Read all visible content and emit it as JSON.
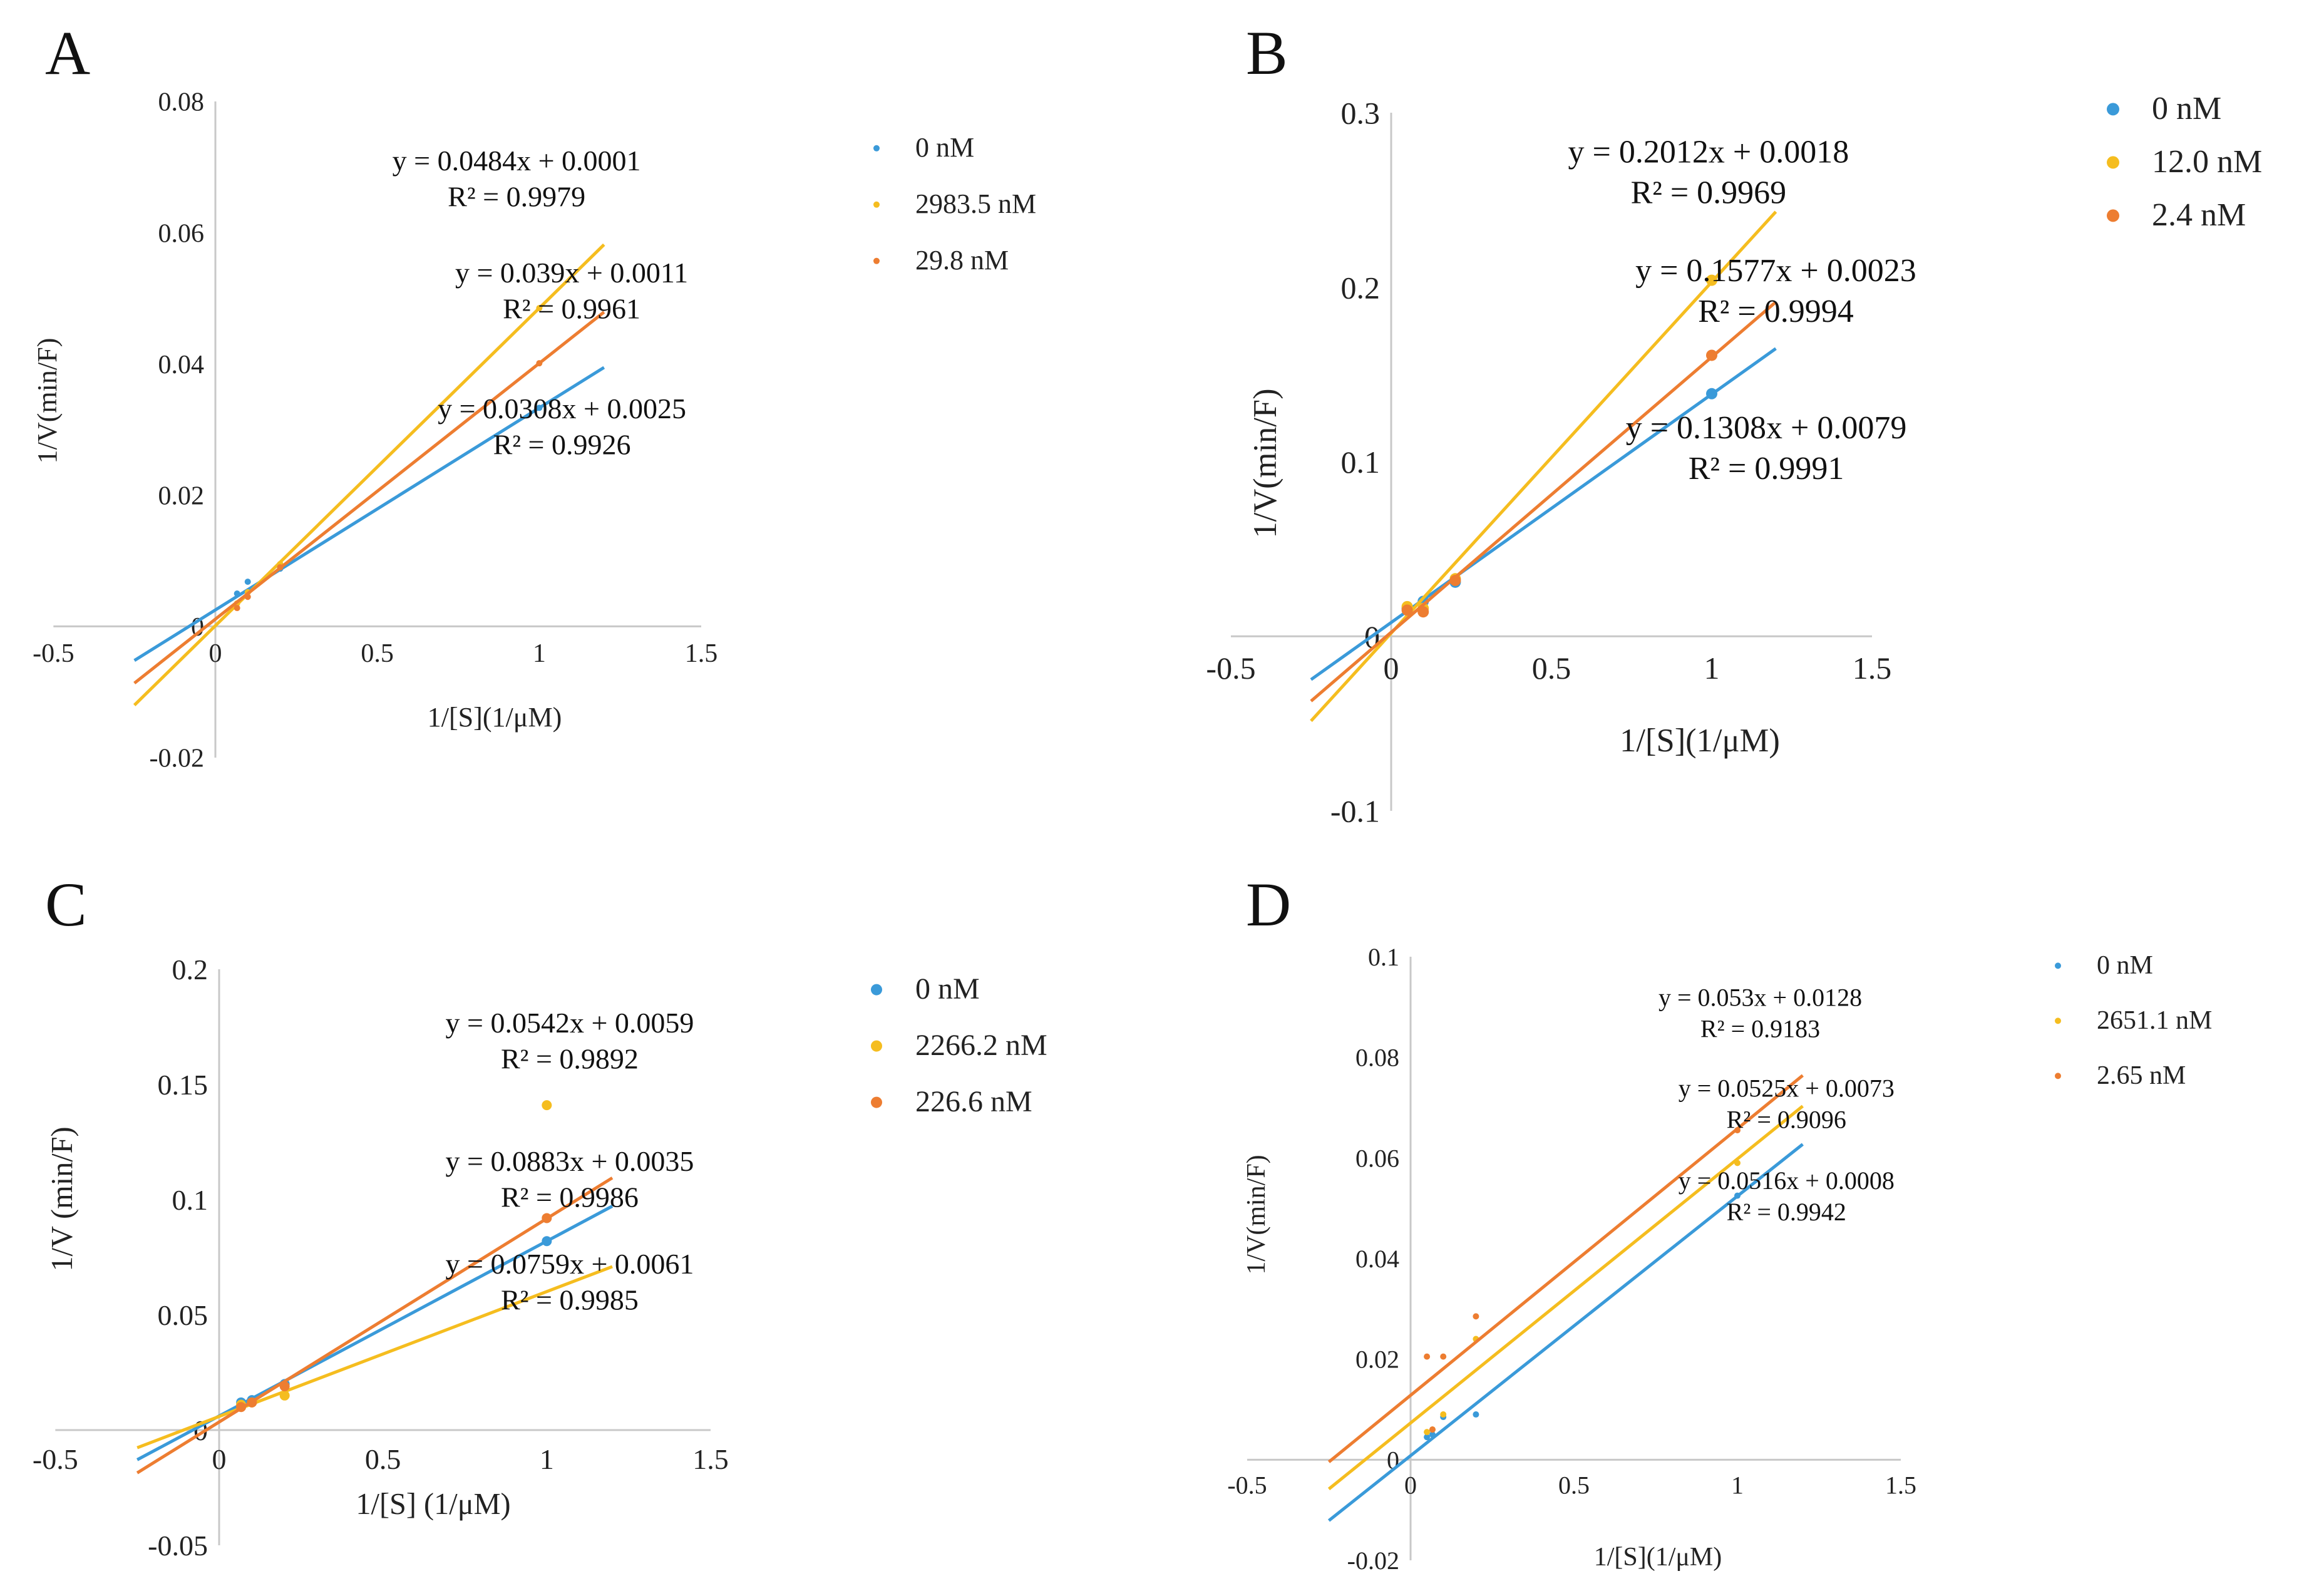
{
  "colors": {
    "blue": "#3a9ad9",
    "yellow": "#f5bd1f",
    "orange": "#ed7d31",
    "axis": "#c8c8c8"
  },
  "chart_data": [
    {
      "type": "scatter",
      "panel": "A",
      "xlabel": "1/[S](1/μM)",
      "ylabel": "1/V(min/F)",
      "xlim": [
        -0.5,
        1.5
      ],
      "ylim": [
        -0.02,
        0.08
      ],
      "xticks": [
        -0.5,
        0,
        0.5,
        1,
        1.5
      ],
      "xtick_labels": [
        "-0.5",
        "0",
        "0.5",
        "1",
        "1.5"
      ],
      "yticks": [
        -0.02,
        0,
        0.02,
        0.04,
        0.06,
        0.08
      ],
      "ytick_labels": [
        "-0.02",
        "0",
        "0.02",
        "0.04",
        "0.06",
        "0.08"
      ],
      "line_x_range": [
        -0.25,
        1.2
      ],
      "series": [
        {
          "name": "0 nM",
          "color": "blue",
          "slope": 0.0308,
          "intercept": 0.0025,
          "x": [
            0.067,
            0.1,
            0.2,
            1
          ],
          "y": [
            0.005,
            0.0068,
            0.0088,
            0.0333
          ],
          "equation": "y = 0.0308x + 0.0025",
          "r2": "R² = 0.9926"
        },
        {
          "name": "2983.5 nM",
          "color": "yellow",
          "slope": 0.0484,
          "intercept": 0.0001,
          "x": [
            0.067,
            0.1,
            0.2,
            1
          ],
          "y": [
            0.0035,
            0.0052,
            0.0095,
            0.0485
          ],
          "equation": "y = 0.0484x + 0.0001",
          "r2": "R² = 0.9979"
        },
        {
          "name": "29.8 nM",
          "color": "orange",
          "slope": 0.039,
          "intercept": 0.0011,
          "x": [
            0.067,
            0.1,
            0.2,
            1
          ],
          "y": [
            0.0028,
            0.0045,
            0.009,
            0.0401
          ],
          "equation": "y = 0.039x + 0.0011",
          "r2": "R² = 0.9961"
        }
      ],
      "annotations": [
        {
          "lines": [
            "y = 0.0484x + 0.0001",
            "R² = 0.9979"
          ],
          "x": 0.93,
          "y": 0.0695
        },
        {
          "lines": [
            "y = 0.039x + 0.0011",
            "R² = 0.9961"
          ],
          "x": 1.1,
          "y": 0.0524
        },
        {
          "lines": [
            "y = 0.0308x + 0.0025",
            "R² = 0.9926"
          ],
          "x": 1.07,
          "y": 0.0317
        }
      ]
    },
    {
      "type": "scatter",
      "panel": "B",
      "xlabel": "1/[S](1/μM)",
      "ylabel": "1/V(min/F)",
      "xlim": [
        -0.5,
        1.5
      ],
      "ylim": [
        -0.1,
        0.3
      ],
      "xticks": [
        -0.5,
        0,
        0.5,
        1,
        1.5
      ],
      "xtick_labels": [
        "-0.5",
        "0",
        "0.5",
        "1",
        "1.5"
      ],
      "yticks": [
        -0.1,
        0,
        0.1,
        0.2,
        0.3
      ],
      "ytick_labels": [
        "-0.1",
        "0",
        "0.1",
        "0.2",
        "0.3"
      ],
      "line_x_range": [
        -0.25,
        1.2
      ],
      "series": [
        {
          "name": "0 nM",
          "color": "blue",
          "slope": 0.1308,
          "intercept": 0.0079,
          "x": [
            0.05,
            0.1,
            0.2,
            1
          ],
          "y": [
            0.016,
            0.02,
            0.031,
            0.139
          ],
          "equation": "y = 0.1308x + 0.0079",
          "r2": "R² = 0.9991"
        },
        {
          "name": "12.0 nM",
          "color": "yellow",
          "slope": 0.2012,
          "intercept": 0.0018,
          "x": [
            0.05,
            0.1,
            0.2,
            1
          ],
          "y": [
            0.017,
            0.016,
            0.033,
            0.204
          ],
          "equation": "y = 0.2012x + 0.0018",
          "r2": "R² = 0.9969"
        },
        {
          "name": "2.4 nM",
          "color": "orange",
          "slope": 0.1577,
          "intercept": 0.0023,
          "x": [
            0.05,
            0.1,
            0.2,
            1
          ],
          "y": [
            0.015,
            0.014,
            0.032,
            0.161
          ],
          "equation": "y = 0.1577x + 0.0023",
          "r2": "R² = 0.9994"
        }
      ],
      "annotations": [
        {
          "lines": [
            "y = 0.2012x + 0.0018",
            "R² = 0.9969"
          ],
          "x": 0.99,
          "y": 0.2715
        },
        {
          "lines": [
            "y = 0.1577x + 0.0023",
            "R² = 0.9994"
          ],
          "x": 1.2,
          "y": 0.2035
        },
        {
          "lines": [
            "y = 0.1308x + 0.0079",
            "R² = 0.9991"
          ],
          "x": 1.17,
          "y": 0.1135
        }
      ]
    },
    {
      "type": "scatter",
      "panel": "C",
      "xlabel": "1/[S] (1/μM)",
      "ylabel": "1/V (min/F)",
      "xlim": [
        -0.5,
        1.5
      ],
      "ylim": [
        -0.05,
        0.2
      ],
      "xticks": [
        -0.5,
        0,
        0.5,
        1,
        1.5
      ],
      "xtick_labels": [
        "-0.5",
        "0",
        "0.5",
        "1",
        "1.5"
      ],
      "yticks": [
        -0.05,
        0,
        0.05,
        0.1,
        0.15,
        0.2
      ],
      "ytick_labels": [
        "-0.05",
        "0",
        "0.05",
        "0.1",
        "0.15",
        "0.2"
      ],
      "line_x_range": [
        -0.25,
        1.2
      ],
      "series": [
        {
          "name": "0 nM",
          "color": "blue",
          "slope": 0.0759,
          "intercept": 0.0061,
          "x": [
            0.067,
            0.1,
            0.2,
            1
          ],
          "y": [
            0.012,
            0.013,
            0.02,
            0.082
          ],
          "equation": "y = 0.0759x + 0.0061",
          "r2": "R² = 0.9985"
        },
        {
          "name": "2266.2 nM",
          "color": "yellow",
          "slope": 0.0542,
          "intercept": 0.0059,
          "x": [
            0.067,
            0.1,
            0.2,
            1
          ],
          "y": [
            0.011,
            0.012,
            0.015,
            0.141
          ],
          "equation": "y = 0.0542x + 0.0059",
          "r2": "R² = 0.9892"
        },
        {
          "name": "226.6 nM",
          "color": "orange",
          "slope": 0.0883,
          "intercept": 0.0035,
          "x": [
            0.067,
            0.1,
            0.2,
            1
          ],
          "y": [
            0.01,
            0.012,
            0.019,
            0.092
          ],
          "equation": "y = 0.0883x + 0.0035",
          "r2": "R² = 0.9986"
        }
      ],
      "annotations": [
        {
          "lines": [
            "y = 0.0542x + 0.0059",
            "R² = 0.9892"
          ],
          "x": 1.07,
          "y": 0.1725
        },
        {
          "lines": [
            "y = 0.0883x + 0.0035",
            "R² = 0.9986"
          ],
          "x": 1.07,
          "y": 0.1125
        },
        {
          "lines": [
            "y = 0.0759x + 0.0061",
            "R² = 0.9985"
          ],
          "x": 1.07,
          "y": 0.068
        }
      ]
    },
    {
      "type": "scatter",
      "panel": "D",
      "xlabel": "1/[S](1/μM)",
      "ylabel": "1/V(min/F)",
      "xlim": [
        -0.5,
        1.5
      ],
      "ylim": [
        -0.02,
        0.1
      ],
      "xticks": [
        -0.5,
        0,
        0.5,
        1,
        1.5
      ],
      "xtick_labels": [
        "-0.5",
        "0",
        "0.5",
        "1",
        "1.5"
      ],
      "yticks": [
        -0.02,
        0,
        0.02,
        0.04,
        0.06,
        0.08,
        0.1
      ],
      "ytick_labels": [
        "-0.02",
        "0",
        "0.02",
        "0.04",
        "0.06",
        "0.08",
        "0.1"
      ],
      "line_x_range": [
        -0.25,
        1.2
      ],
      "series": [
        {
          "name": "0 nM",
          "color": "blue",
          "slope": 0.0516,
          "intercept": 0.0008,
          "x": [
            0.05,
            0.067,
            0.1,
            0.2,
            1
          ],
          "y": [
            0.0045,
            0.005,
            0.0085,
            0.009,
            0.0525
          ],
          "equation": "y = 0.0516x + 0.0008",
          "r2": "R² = 0.9942"
        },
        {
          "name": "2651.1 nM",
          "color": "yellow",
          "slope": 0.0525,
          "intercept": 0.0073,
          "x": [
            0.05,
            0.067,
            0.1,
            0.2,
            1
          ],
          "y": [
            0.0055,
            0.006,
            0.009,
            0.024,
            0.059
          ],
          "equation": "y = 0.0525x + 0.0073",
          "r2": "R² = 0.9096"
        },
        {
          "name": "2.65 nM",
          "color": "orange",
          "slope": 0.053,
          "intercept": 0.0128,
          "x": [
            0.05,
            0.067,
            0.1,
            0.2,
            1
          ],
          "y": [
            0.0205,
            0.006,
            0.0205,
            0.0285,
            0.0655
          ],
          "equation": "y = 0.053x + 0.0128",
          "r2": "R² = 0.9183"
        }
      ],
      "annotations": [
        {
          "lines": [
            "y = 0.053x + 0.0128",
            "R² = 0.9183"
          ],
          "x": 1.07,
          "y": 0.0902
        },
        {
          "lines": [
            "y = 0.0525x + 0.0073",
            "R² = 0.9096"
          ],
          "x": 1.15,
          "y": 0.0722
        },
        {
          "lines": [
            "y = 0.0516x + 0.0008",
            "R² = 0.9942"
          ],
          "x": 1.15,
          "y": 0.0538
        }
      ]
    }
  ]
}
